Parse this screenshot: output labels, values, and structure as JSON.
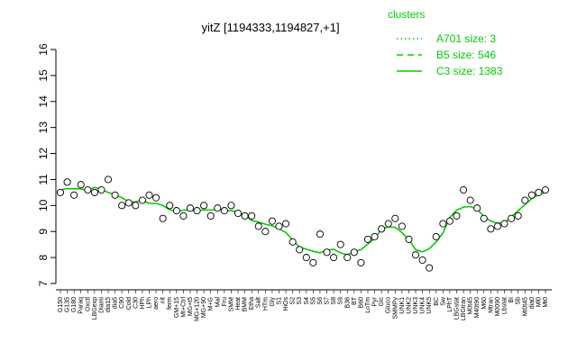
{
  "chart_data": {
    "type": "line",
    "title": "yitZ [1194333,1194827,+1]",
    "xlabel": "",
    "ylabel": "",
    "ylim": [
      7,
      16
    ],
    "yticks": [
      7,
      8,
      9,
      10,
      11,
      12,
      13,
      14,
      15,
      16
    ],
    "x_tick_labels": [
      "G150",
      "G135",
      "G180",
      "Paraq",
      "Oxctl",
      "LBGexp",
      "Diami",
      "dia15",
      "dia5",
      "C90",
      "Cold",
      "C30",
      "HPh",
      "LPh",
      "aero",
      "nit",
      "ferm",
      "GM+15",
      "Mt+Ctrl",
      "MG+t5",
      "MG+120",
      "MG+90",
      "M+G",
      "Mal",
      "Fru",
      "SMM",
      "Heat",
      "BMM",
      "Etha",
      "Salt",
      "HTm",
      "Gly",
      "S1",
      "HiOs",
      "S2",
      "S3",
      "S4",
      "S5",
      "S6",
      "S7",
      "S8",
      "S9",
      "B36",
      "BT",
      "B60",
      "LoTm",
      "Pyr",
      "Glc",
      "Gluco",
      "SMMPy",
      "UNK1",
      "UNK2",
      "UNK3",
      "UNK4",
      "UNK5",
      "BC",
      "Sw",
      "LPhT",
      "LBGstat",
      "LBGtran",
      "M0t45",
      "M40t90",
      "M60",
      "Mtran",
      "M0090",
      "Lbstat",
      "BI",
      "Sb",
      "Mt0t45",
      "dia0",
      "Ml0",
      "Mt0"
    ],
    "series": [
      {
        "name": "",
        "values": [
          10.5,
          10.9,
          10.4,
          10.8,
          10.6,
          10.5,
          10.6,
          11.0,
          10.4,
          10.0,
          10.1,
          10.0,
          10.2,
          10.4,
          10.3,
          9.5,
          10.0,
          9.8,
          9.6,
          9.9,
          9.8,
          10.0,
          9.6,
          9.9,
          9.8,
          10.0,
          9.7,
          9.6,
          9.6,
          9.2,
          9.0,
          9.4,
          9.2,
          9.3,
          8.6,
          8.3,
          8.0,
          7.8,
          8.9,
          8.2,
          8.0,
          8.5,
          8.0,
          8.2,
          7.8,
          8.7,
          8.8,
          9.1,
          9.3,
          9.5,
          9.2,
          8.7,
          8.1,
          7.9,
          7.6,
          8.8,
          9.3,
          9.4,
          9.6,
          10.6,
          10.2,
          9.9,
          9.5,
          9.1,
          9.2,
          9.3,
          9.5,
          9.6,
          10.2,
          10.4,
          10.5,
          10.6
        ]
      }
    ],
    "legend": {
      "title": "clusters",
      "position": "top-right",
      "entries": [
        {
          "label": "A701 size: 3",
          "style": "dotted"
        },
        {
          "label": "B5 size: 546",
          "style": "dashed"
        },
        {
          "label": "C3 size: 1383",
          "style": "solid"
        }
      ]
    },
    "colors": {
      "line": "#00cc00",
      "points": "#000000",
      "legend": "#00cc00"
    }
  }
}
